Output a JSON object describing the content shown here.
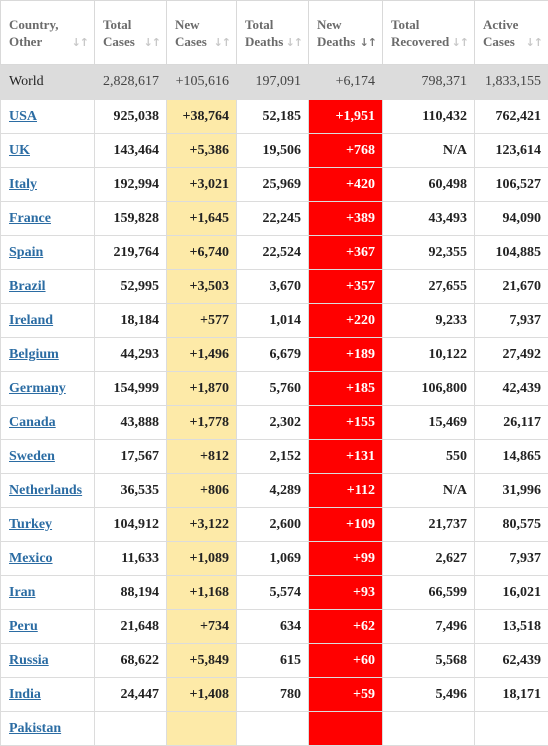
{
  "headers": [
    {
      "line1": "Country,",
      "line2": "Other",
      "sort": "↓↑",
      "active": false
    },
    {
      "line1": "Total",
      "line2": "Cases",
      "sort": "↓↑",
      "active": false
    },
    {
      "line1": "New",
      "line2": "Cases",
      "sort": "↓↑",
      "active": false
    },
    {
      "line1": "Total",
      "line2": "Deaths",
      "sort": "↓↑",
      "active": false
    },
    {
      "line1": "New",
      "line2": "Deaths",
      "sort": "↓↑",
      "active": true
    },
    {
      "line1": "Total",
      "line2": "Recovered",
      "sort": "↓↑",
      "active": false
    },
    {
      "line1": "Active",
      "line2": "Cases",
      "sort": "↓↑",
      "active": false
    }
  ],
  "world": {
    "country": "World",
    "total_cases": "2,828,617",
    "new_cases": "+105,616",
    "total_deaths": "197,091",
    "new_deaths": "+6,174",
    "total_recovered": "798,371",
    "active_cases": "1,833,155"
  },
  "rows": [
    {
      "country": "USA",
      "total_cases": "925,038",
      "new_cases": "+38,764",
      "total_deaths": "52,185",
      "new_deaths": "+1,951",
      "total_recovered": "110,432",
      "active_cases": "762,421"
    },
    {
      "country": "UK",
      "total_cases": "143,464",
      "new_cases": "+5,386",
      "total_deaths": "19,506",
      "new_deaths": "+768",
      "total_recovered": "N/A",
      "active_cases": "123,614"
    },
    {
      "country": "Italy",
      "total_cases": "192,994",
      "new_cases": "+3,021",
      "total_deaths": "25,969",
      "new_deaths": "+420",
      "total_recovered": "60,498",
      "active_cases": "106,527"
    },
    {
      "country": "France",
      "total_cases": "159,828",
      "new_cases": "+1,645",
      "total_deaths": "22,245",
      "new_deaths": "+389",
      "total_recovered": "43,493",
      "active_cases": "94,090"
    },
    {
      "country": "Spain",
      "total_cases": "219,764",
      "new_cases": "+6,740",
      "total_deaths": "22,524",
      "new_deaths": "+367",
      "total_recovered": "92,355",
      "active_cases": "104,885"
    },
    {
      "country": "Brazil",
      "total_cases": "52,995",
      "new_cases": "+3,503",
      "total_deaths": "3,670",
      "new_deaths": "+357",
      "total_recovered": "27,655",
      "active_cases": "21,670"
    },
    {
      "country": "Ireland",
      "total_cases": "18,184",
      "new_cases": "+577",
      "total_deaths": "1,014",
      "new_deaths": "+220",
      "total_recovered": "9,233",
      "active_cases": "7,937"
    },
    {
      "country": "Belgium",
      "total_cases": "44,293",
      "new_cases": "+1,496",
      "total_deaths": "6,679",
      "new_deaths": "+189",
      "total_recovered": "10,122",
      "active_cases": "27,492"
    },
    {
      "country": "Germany",
      "total_cases": "154,999",
      "new_cases": "+1,870",
      "total_deaths": "5,760",
      "new_deaths": "+185",
      "total_recovered": "106,800",
      "active_cases": "42,439"
    },
    {
      "country": "Canada",
      "total_cases": "43,888",
      "new_cases": "+1,778",
      "total_deaths": "2,302",
      "new_deaths": "+155",
      "total_recovered": "15,469",
      "active_cases": "26,117"
    },
    {
      "country": "Sweden",
      "total_cases": "17,567",
      "new_cases": "+812",
      "total_deaths": "2,152",
      "new_deaths": "+131",
      "total_recovered": "550",
      "active_cases": "14,865"
    },
    {
      "country": "Netherlands",
      "total_cases": "36,535",
      "new_cases": "+806",
      "total_deaths": "4,289",
      "new_deaths": "+112",
      "total_recovered": "N/A",
      "active_cases": "31,996"
    },
    {
      "country": "Turkey",
      "total_cases": "104,912",
      "new_cases": "+3,122",
      "total_deaths": "2,600",
      "new_deaths": "+109",
      "total_recovered": "21,737",
      "active_cases": "80,575"
    },
    {
      "country": "Mexico",
      "total_cases": "11,633",
      "new_cases": "+1,089",
      "total_deaths": "1,069",
      "new_deaths": "+99",
      "total_recovered": "2,627",
      "active_cases": "7,937"
    },
    {
      "country": "Iran",
      "total_cases": "88,194",
      "new_cases": "+1,168",
      "total_deaths": "5,574",
      "new_deaths": "+93",
      "total_recovered": "66,599",
      "active_cases": "16,021"
    },
    {
      "country": "Peru",
      "total_cases": "21,648",
      "new_cases": "+734",
      "total_deaths": "634",
      "new_deaths": "+62",
      "total_recovered": "7,496",
      "active_cases": "13,518"
    },
    {
      "country": "Russia",
      "total_cases": "68,622",
      "new_cases": "+5,849",
      "total_deaths": "615",
      "new_deaths": "+60",
      "total_recovered": "5,568",
      "active_cases": "62,439"
    },
    {
      "country": "India",
      "total_cases": "24,447",
      "new_cases": "+1,408",
      "total_deaths": "780",
      "new_deaths": "+59",
      "total_recovered": "5,496",
      "active_cases": "18,171"
    },
    {
      "country": "Pakistan",
      "total_cases": "",
      "new_cases": "",
      "total_deaths": "",
      "new_deaths": "",
      "total_recovered": "",
      "active_cases": ""
    }
  ],
  "colors": {
    "new_cases_bg": "#fdeaa8",
    "new_deaths_bg": "#ff0000",
    "link": "#2b6ca3",
    "world_bg": "#dcdcdc"
  }
}
